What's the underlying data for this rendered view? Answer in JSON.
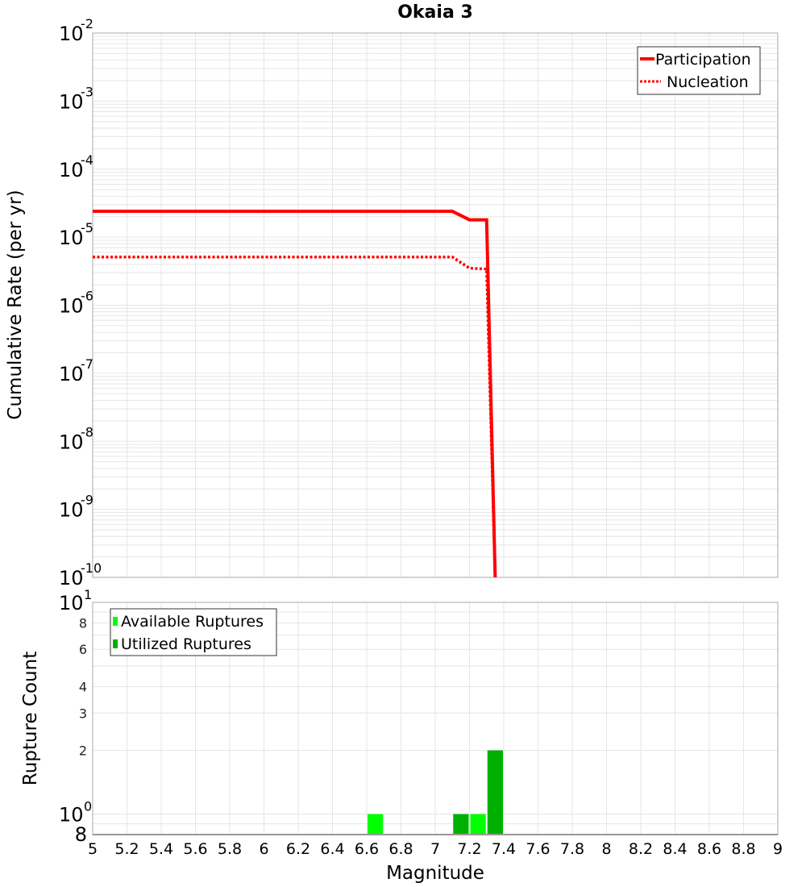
{
  "title": "Okaia 3",
  "colors": {
    "participation": "#ff0000",
    "nucleation": "#ff0000",
    "available": "#00ff00",
    "utilized": "#00b000",
    "grid": "#e6e6e6",
    "axis": "#aaaaaa"
  },
  "top_plot": {
    "ylabel": "Cumulative Rate (per yr)",
    "y_ticks": [
      {
        "base": "10",
        "exp": "-2",
        "value": 0.01
      },
      {
        "base": "10",
        "exp": "-3",
        "value": 0.001
      },
      {
        "base": "10",
        "exp": "-4",
        "value": 0.0001
      },
      {
        "base": "10",
        "exp": "-5",
        "value": 1e-05
      },
      {
        "base": "10",
        "exp": "-6",
        "value": 1e-06
      },
      {
        "base": "10",
        "exp": "-7",
        "value": 1e-07
      },
      {
        "base": "10",
        "exp": "-8",
        "value": 1e-08
      },
      {
        "base": "10",
        "exp": "-9",
        "value": 1e-09
      },
      {
        "base": "10",
        "exp": "-10",
        "value": 1e-10
      }
    ],
    "legend": [
      {
        "label": "Participation",
        "style": "solid"
      },
      {
        "label": "Nucleation",
        "style": "dotted"
      }
    ]
  },
  "bottom_plot": {
    "ylabel": "Rupture Count",
    "y_major_ticks": [
      {
        "base": "10",
        "exp": "1",
        "value": 10
      },
      {
        "base": "10",
        "exp": "0",
        "value": 1
      }
    ],
    "y_minor_ticks": [
      {
        "label": "8",
        "value": 8
      },
      {
        "label": "6",
        "value": 6
      },
      {
        "label": "4",
        "value": 4
      },
      {
        "label": "3",
        "value": 3
      },
      {
        "label": "2",
        "value": 2
      }
    ],
    "y_bottom_label": {
      "label": "8",
      "value": 0.8
    },
    "legend": [
      {
        "label": "Available Ruptures"
      },
      {
        "label": "Utilized Ruptures"
      }
    ]
  },
  "xaxis": {
    "label": "Magnitude",
    "ticks": [
      "5",
      "5.2",
      "5.4",
      "5.6",
      "5.8",
      "6",
      "6.2",
      "6.4",
      "6.6",
      "6.8",
      "7",
      "7.2",
      "7.4",
      "7.6",
      "7.8",
      "8",
      "8.2",
      "8.4",
      "8.6",
      "8.8",
      "9"
    ]
  },
  "chart_data": [
    {
      "type": "line",
      "title": "Okaia 3",
      "xlabel": "Magnitude",
      "ylabel": "Cumulative Rate (per yr)",
      "xlim": [
        5,
        9
      ],
      "ylim": [
        1e-10,
        0.01
      ],
      "yscale": "log",
      "grid": true,
      "legend_position": "top-right",
      "series": [
        {
          "name": "Participation",
          "style": "solid",
          "x": [
            5.0,
            7.1,
            7.2,
            7.3,
            7.35
          ],
          "y": [
            2.4e-05,
            2.4e-05,
            1.8e-05,
            1.8e-05,
            1e-10
          ]
        },
        {
          "name": "Nucleation",
          "style": "dotted",
          "x": [
            5.0,
            7.1,
            7.2,
            7.3,
            7.35
          ],
          "y": [
            5.1e-06,
            5.1e-06,
            3.5e-06,
            3.4e-06,
            1e-10
          ]
        }
      ]
    },
    {
      "type": "bar",
      "xlabel": "Magnitude",
      "ylabel": "Rupture Count",
      "xlim": [
        5,
        9
      ],
      "ylim": [
        0.8,
        10
      ],
      "yscale": "log",
      "grid": true,
      "legend_position": "top-left",
      "series": [
        {
          "name": "Available Ruptures",
          "bins": [
            [
              6.6,
              6.7,
              1
            ],
            [
              7.2,
              7.3,
              1
            ]
          ]
        },
        {
          "name": "Utilized Ruptures",
          "bins": [
            [
              7.1,
              7.2,
              1
            ],
            [
              7.3,
              7.4,
              2
            ]
          ]
        }
      ]
    }
  ]
}
